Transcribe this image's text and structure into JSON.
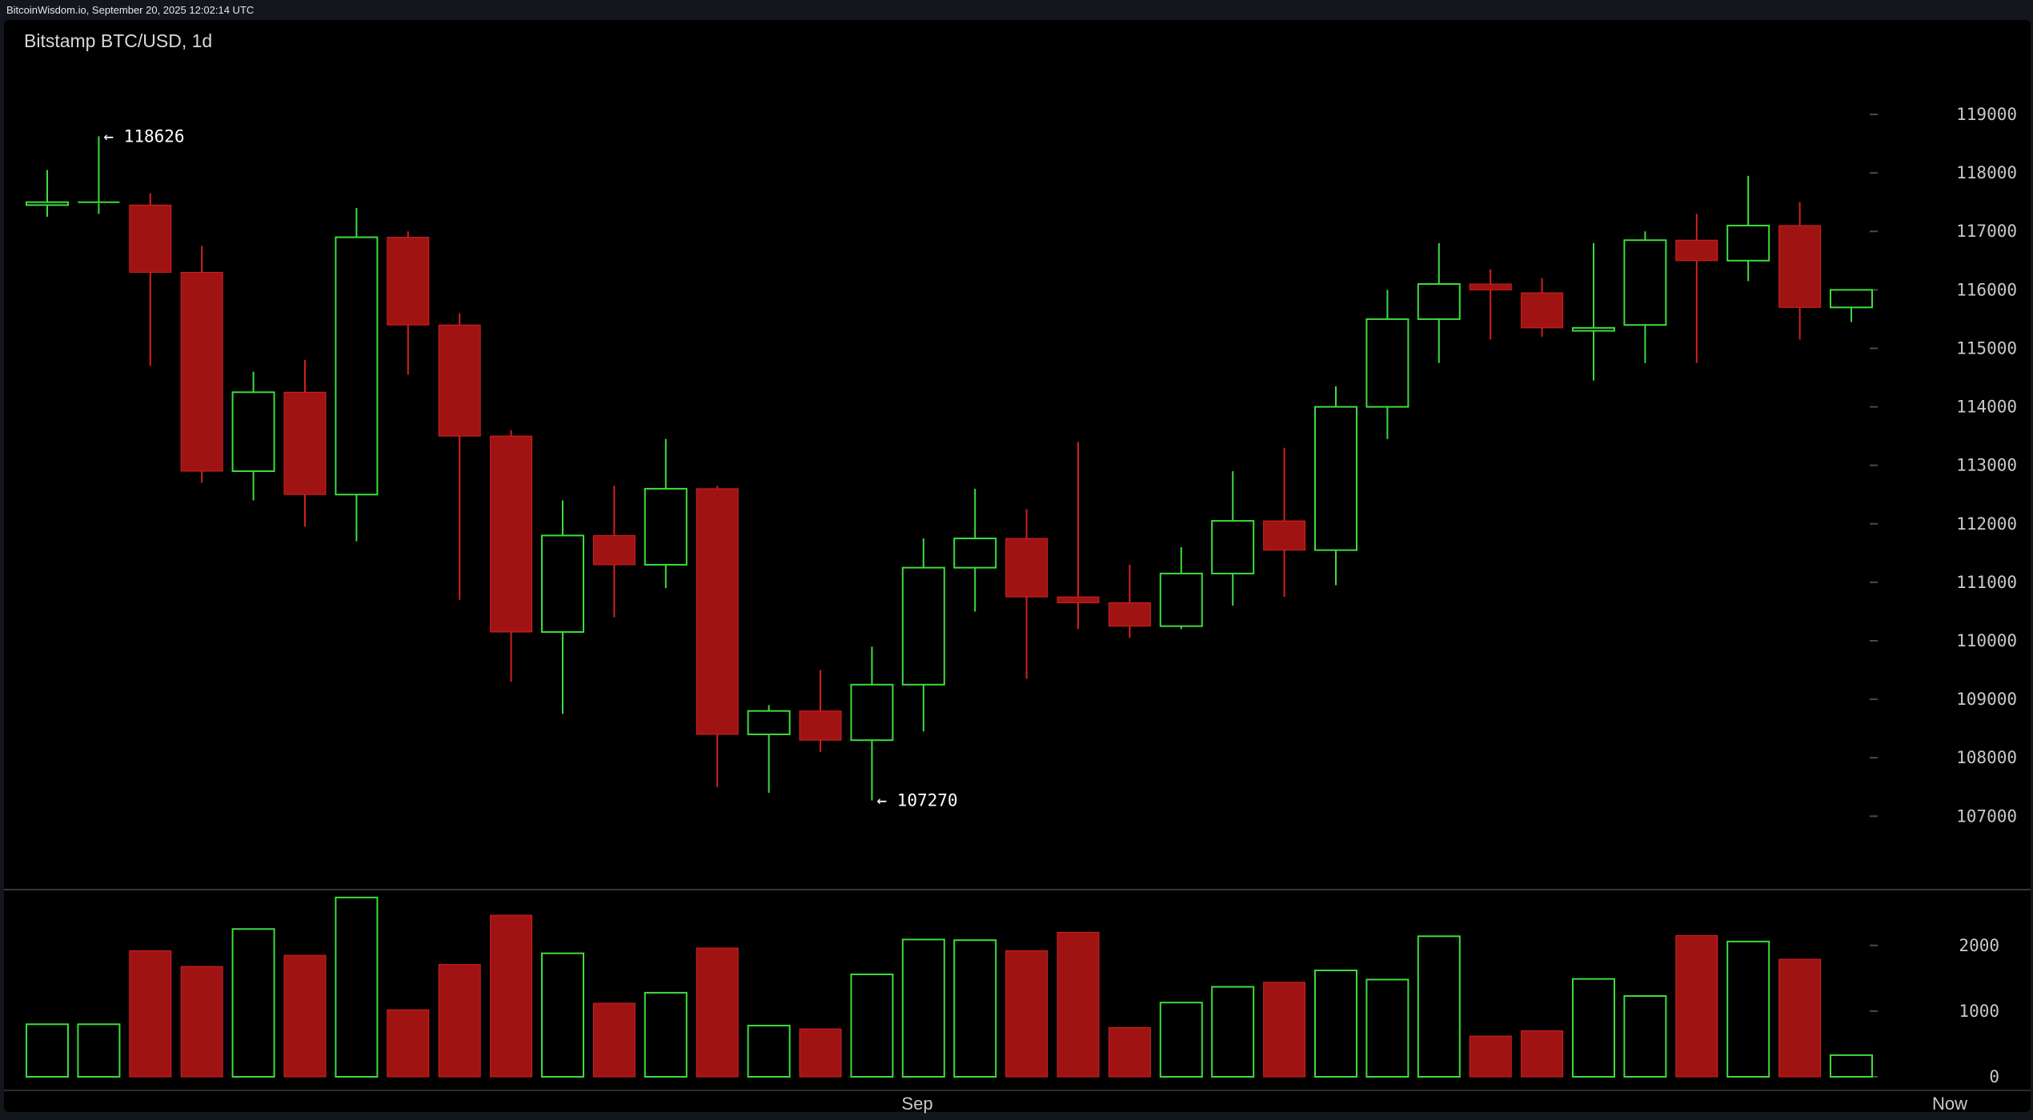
{
  "header": {
    "site_stamp": "BitcoinWisdom.io, September 20, 2025 12:02:14 UTC",
    "chart_title": "Bitstamp BTC/USD, 1d"
  },
  "colors": {
    "up": "#3ddc3d",
    "down": "#a01313",
    "down_wick": "#d42020",
    "background": "#000000",
    "frame": "#14161d",
    "grid_tick": "#4a4a4a"
  },
  "chart_data": [
    {
      "type": "candlestick",
      "title": "Bitstamp BTC/USD, 1d",
      "ylim": [
        105800,
        120300
      ],
      "y_ticks": [
        107000,
        108000,
        109000,
        110000,
        111000,
        112000,
        113000,
        114000,
        115000,
        116000,
        117000,
        118000,
        119000
      ],
      "x_labels": [
        "Sep",
        "Now"
      ],
      "annotations": [
        {
          "text": "← 118626",
          "value": 118626,
          "candle": 1
        },
        {
          "text": "← 107270",
          "value": 107270,
          "candle": 16
        }
      ],
      "candles": [
        {
          "o": 117450,
          "h": 118050,
          "l": 117250,
          "c": 117500
        },
        {
          "o": 117480,
          "h": 118626,
          "l": 117300,
          "c": 117500
        },
        {
          "o": 117450,
          "h": 117650,
          "l": 114700,
          "c": 116300
        },
        {
          "o": 116300,
          "h": 116750,
          "l": 112700,
          "c": 112900
        },
        {
          "o": 112900,
          "h": 114600,
          "l": 112400,
          "c": 114250
        },
        {
          "o": 114250,
          "h": 114800,
          "l": 111950,
          "c": 112500
        },
        {
          "o": 112500,
          "h": 117400,
          "l": 111700,
          "c": 116900
        },
        {
          "o": 116900,
          "h": 117000,
          "l": 114550,
          "c": 115400
        },
        {
          "o": 115400,
          "h": 115600,
          "l": 110700,
          "c": 113500
        },
        {
          "o": 113500,
          "h": 113600,
          "l": 109300,
          "c": 110150
        },
        {
          "o": 110150,
          "h": 112400,
          "l": 108750,
          "c": 111800
        },
        {
          "o": 111800,
          "h": 112650,
          "l": 110400,
          "c": 111300
        },
        {
          "o": 111300,
          "h": 113450,
          "l": 110900,
          "c": 112600
        },
        {
          "o": 112600,
          "h": 112650,
          "l": 107500,
          "c": 108400
        },
        {
          "o": 108400,
          "h": 108900,
          "l": 107400,
          "c": 108800
        },
        {
          "o": 108800,
          "h": 109500,
          "l": 108100,
          "c": 108300
        },
        {
          "o": 108300,
          "h": 109900,
          "l": 107270,
          "c": 109250
        },
        {
          "o": 109250,
          "h": 111750,
          "l": 108450,
          "c": 111250
        },
        {
          "o": 111250,
          "h": 112600,
          "l": 110500,
          "c": 111750
        },
        {
          "o": 111750,
          "h": 112250,
          "l": 109350,
          "c": 110750
        },
        {
          "o": 110750,
          "h": 113400,
          "l": 110200,
          "c": 110650
        },
        {
          "o": 110650,
          "h": 111300,
          "l": 110050,
          "c": 110250
        },
        {
          "o": 110250,
          "h": 111600,
          "l": 110200,
          "c": 111150
        },
        {
          "o": 111150,
          "h": 112900,
          "l": 110600,
          "c": 112050
        },
        {
          "o": 112050,
          "h": 113300,
          "l": 110750,
          "c": 111550
        },
        {
          "o": 111550,
          "h": 114350,
          "l": 110950,
          "c": 114000
        },
        {
          "o": 114000,
          "h": 116000,
          "l": 113450,
          "c": 115500
        },
        {
          "o": 115500,
          "h": 116800,
          "l": 114750,
          "c": 116100
        },
        {
          "o": 116100,
          "h": 116350,
          "l": 115150,
          "c": 116000
        },
        {
          "o": 115950,
          "h": 116200,
          "l": 115200,
          "c": 115350
        },
        {
          "o": 115300,
          "h": 116800,
          "l": 114450,
          "c": 115350
        },
        {
          "o": 115400,
          "h": 117000,
          "l": 114750,
          "c": 116850
        },
        {
          "o": 116850,
          "h": 117300,
          "l": 114750,
          "c": 116500
        },
        {
          "o": 116500,
          "h": 117950,
          "l": 116150,
          "c": 117100
        },
        {
          "o": 117100,
          "h": 117500,
          "l": 115150,
          "c": 115700
        },
        {
          "o": 115700,
          "h": 116000,
          "l": 115450,
          "c": 116000
        }
      ]
    },
    {
      "type": "bar",
      "series_label": "volume",
      "ylim": [
        0,
        2850
      ],
      "y_ticks": [
        0,
        1000,
        2000
      ],
      "values": [
        800,
        800,
        1920,
        1680,
        2250,
        1850,
        2730,
        1020,
        1710,
        2460,
        1880,
        1120,
        1280,
        1960,
        780,
        730,
        1560,
        2090,
        2080,
        1920,
        2200,
        750,
        1130,
        1370,
        1440,
        1620,
        1480,
        2140,
        620,
        700,
        1490,
        1230,
        2150,
        2060,
        1790,
        330
      ]
    }
  ]
}
